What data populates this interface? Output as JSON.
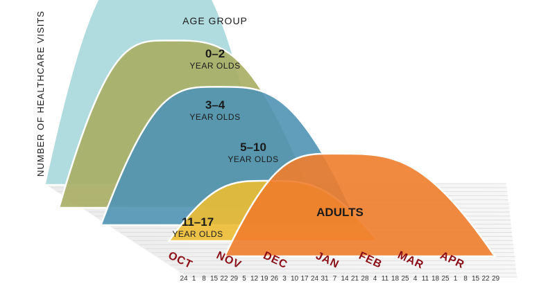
{
  "chart_data": {
    "type": "area",
    "title": "AGE GROUP",
    "ylabel": "NUMBER OF HEALTHCARE VISITS",
    "xlabel": "",
    "months": [
      "OCT",
      "NOV",
      "DEC",
      "JAN",
      "FEB",
      "MAR",
      "APR"
    ],
    "day_ticks": [
      "24",
      "1",
      "8",
      "15",
      "22",
      "29",
      "5",
      "12",
      "19",
      "26",
      "3",
      "10",
      "17",
      "24",
      "31",
      "7",
      "14",
      "21",
      "28",
      "4",
      "11",
      "18",
      "25",
      "4",
      "11",
      "18",
      "25",
      "1",
      "8",
      "15",
      "22",
      "29"
    ],
    "series": [
      {
        "name": "0–2",
        "sublabel": "YEAR OLDS",
        "color": "#a9d8dc",
        "start_week": -1,
        "peak_week": 8.0,
        "end_week": 17,
        "relative_peak": 1.0
      },
      {
        "name": "3–4",
        "sublabel": "YEAR OLDS",
        "color": "#a8ad63",
        "start_week": 0,
        "peak_week": 9.0,
        "end_week": 21,
        "relative_peak": 0.75
      },
      {
        "name": "5–10",
        "sublabel": "YEAR OLDS",
        "color": "#4f94b5",
        "start_week": 2,
        "peak_week": 11.5,
        "end_week": 23,
        "relative_peak": 0.62
      },
      {
        "name": "11–17",
        "sublabel": "YEAR OLDS",
        "color": "#edbd33",
        "start_week": 5,
        "peak_week": 13.0,
        "end_week": 22,
        "relative_peak": 0.27
      },
      {
        "name": "ADULTS",
        "sublabel": "",
        "color": "#f07d2c",
        "start_week": 7,
        "peak_week": 16.0,
        "end_week": 29,
        "relative_peak": 0.46
      }
    ],
    "grid": false,
    "legend": "none"
  }
}
